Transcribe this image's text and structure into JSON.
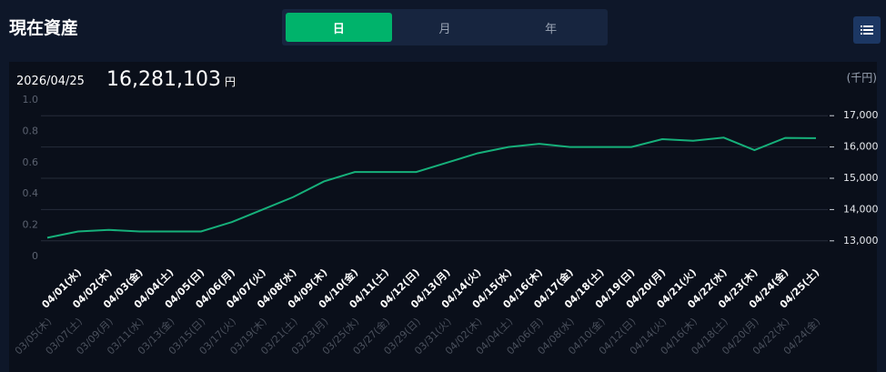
{
  "header": {
    "title": "現在資産"
  },
  "tabs": [
    "日",
    "月",
    "年"
  ],
  "active_tab": 0,
  "summary": {
    "date": "2026/04/25",
    "amount": "16,281,103",
    "unit": "円"
  },
  "chart_data": {
    "type": "line",
    "y2_label": "(千円)",
    "categories": [
      null,
      "04/01(水)",
      "04/02(木)",
      "04/03(金)",
      "04/04(土)",
      "04/05(日)",
      "04/06(月)",
      "04/07(火)",
      "04/08(水)",
      "04/09(木)",
      "04/10(金)",
      "04/11(土)",
      "04/12(日)",
      "04/13(月)",
      "04/14(火)",
      "04/15(水)",
      "04/16(木)",
      "04/17(金)",
      "04/18(土)",
      "04/19(日)",
      "04/20(月)",
      "04/21(火)",
      "04/22(水)",
      "04/23(木)",
      "04/24(金)",
      "04/25(土)"
    ],
    "x2_categories": [
      "03/05(木)",
      "03/07(土)",
      "03/09(月)",
      "03/11(水)",
      "03/13(金)",
      "03/15(日)",
      "03/17(火)",
      "03/19(木)",
      "03/21(土)",
      "03/23(月)",
      "03/25(水)",
      "03/27(金)",
      "03/29(日)",
      "03/31(火)",
      "04/02(木)",
      "04/04(土)",
      "04/06(月)",
      "04/08(水)",
      "04/10(金)",
      "04/12(日)",
      "04/14(火)",
      "04/16(木)",
      "04/18(土)",
      "04/20(月)",
      "04/22(水)",
      "04/24(金)"
    ],
    "series": [
      {
        "color": "#16b07a",
        "axis": "y2",
        "values": [
          13100,
          13300,
          13350,
          13300,
          13300,
          13300,
          13600,
          14000,
          14400,
          14900,
          15200,
          15200,
          15200,
          15500,
          15800,
          16000,
          16100,
          16000,
          16000,
          16000,
          16250,
          16200,
          16300,
          15900,
          16290,
          16281
        ]
      }
    ],
    "ylim": [
      0,
      1
    ],
    "yticks": [
      0,
      0.2,
      0.4,
      0.6,
      0.8,
      {
        "value": 1,
        "label": "1.0"
      }
    ],
    "y2lim": [
      12500,
      17500
    ],
    "y2ticks": [
      {
        "value": 13000,
        "label": "13,000"
      },
      {
        "value": 14000,
        "label": "14,000"
      },
      {
        "value": 15000,
        "label": "15,000"
      },
      {
        "value": 16000,
        "label": "16,000"
      },
      {
        "value": 17000,
        "label": "17,000"
      }
    ],
    "grid": true
  }
}
